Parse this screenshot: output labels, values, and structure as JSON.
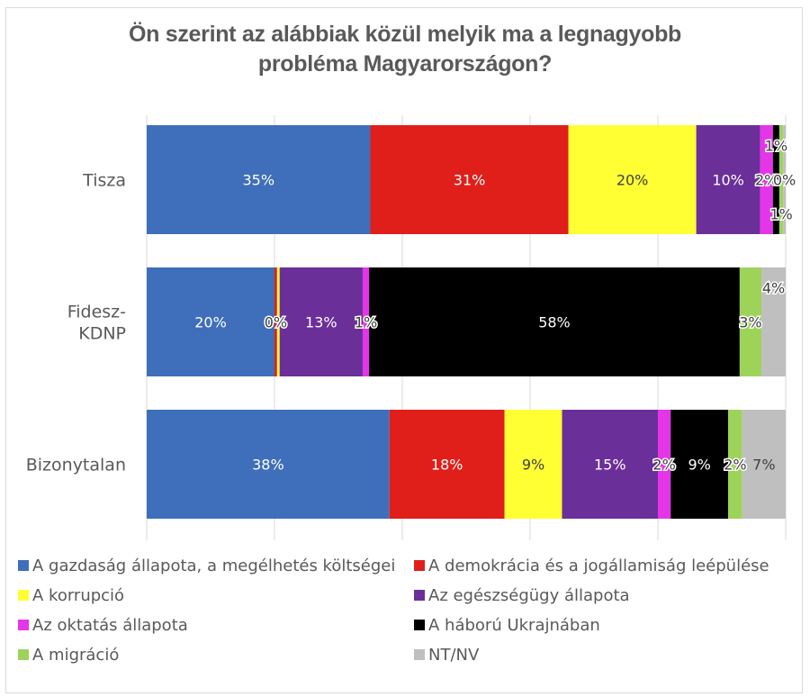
{
  "chart_data": {
    "type": "bar",
    "orientation": "horizontal",
    "stacked": "percent",
    "title": "Ön szerint az alábbiak közül melyik ma a legnagyobb probléma Magyarországon?",
    "title_lines": [
      "Ön szerint az alábbiak közül melyik ma a legnagyobb",
      "probléma Magyarországon?"
    ],
    "xlabel": "",
    "ylabel": "",
    "xlim": [
      0,
      100
    ],
    "grid": true,
    "legend_position": "bottom",
    "categories": [
      "Tisza",
      "Fidesz-KDNP",
      "Bizonytalan"
    ],
    "category_display": [
      [
        "Tisza"
      ],
      [
        "Fidesz-",
        "KDNP"
      ],
      [
        "Bizonytalan"
      ]
    ],
    "series": [
      {
        "name": "A gazdaság állapota, a megélhetés költségei",
        "color": "#3F6FBB",
        "label_color": "#ffffff",
        "values": [
          35,
          20,
          38
        ],
        "labels": [
          "35%",
          "20%",
          "38%"
        ]
      },
      {
        "name": "A demokrácia és a jogállamiság leépülése",
        "color": "#E01F1A",
        "label_color": "#ffffff",
        "values": [
          31,
          0.4,
          18
        ],
        "labels": [
          "31%",
          "0%",
          "18%"
        ]
      },
      {
        "name": "A korrupció",
        "color": "#FFFF33",
        "label_color": "#404040",
        "values": [
          20,
          0.4,
          9
        ],
        "labels": [
          "20%",
          "",
          "9%"
        ]
      },
      {
        "name": "Az egészségügy állapota",
        "color": "#6B2F9A",
        "label_color": "#ffffff",
        "values": [
          10,
          13,
          15
        ],
        "labels": [
          "10%",
          "13%",
          "15%"
        ]
      },
      {
        "name": "Az oktatás állapota",
        "color": "#E535E8",
        "label_color": "#ffffff",
        "values": [
          2,
          1,
          2
        ],
        "labels": [
          "2%",
          "1%",
          "2%"
        ]
      },
      {
        "name": "A háború Ukrajnában",
        "color": "#000000",
        "label_color": "#ffffff",
        "values": [
          1,
          58,
          9
        ],
        "labels": [
          "1%",
          "58%",
          "9%"
        ]
      },
      {
        "name": "A migráció",
        "color": "#9ED35A",
        "label_color": "#404040",
        "values": [
          0.6,
          3.4,
          2.2
        ],
        "labels": [
          "1%",
          "3%",
          "2%"
        ]
      },
      {
        "name": "NT/NV",
        "color": "#BFBFBF",
        "label_color": "#404040",
        "values": [
          0.4,
          3.8,
          6.8
        ],
        "labels": [
          "0%",
          "4%",
          "7%"
        ]
      }
    ]
  },
  "legend": {
    "items": [
      {
        "label": "A gazdaság állapota, a megélhetés költségei",
        "color": "#3F6FBB"
      },
      {
        "label": "A demokrácia és a jogállamiság leépülése",
        "color": "#E01F1A"
      },
      {
        "label": "A korrupció",
        "color": "#FFFF33"
      },
      {
        "label": "Az egészségügy állapota",
        "color": "#6B2F9A"
      },
      {
        "label": "Az oktatás állapota",
        "color": "#E535E8"
      },
      {
        "label": "A háború Ukrajnában",
        "color": "#000000"
      },
      {
        "label": "A migráció",
        "color": "#9ED35A"
      },
      {
        "label": "NT/NV",
        "color": "#BFBFBF"
      }
    ]
  }
}
